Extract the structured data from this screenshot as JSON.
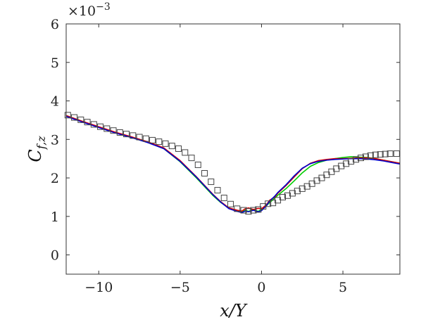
{
  "chart_data": {
    "type": "line",
    "title": "",
    "xlabel": "x/Y",
    "ylabel": {
      "main": "C",
      "sub": "f,z"
    },
    "y_exponent": {
      "base": "×10",
      "power": "−3"
    },
    "xlim": [
      -12,
      8.5
    ],
    "ylim": [
      -0.5,
      6
    ],
    "x_ticks": [
      -10,
      -5,
      0,
      5
    ],
    "y_ticks": [
      0,
      1,
      2,
      3,
      4,
      5,
      6
    ],
    "grid": false,
    "legend": "none",
    "series": [
      {
        "color": "#00cc00",
        "style": "line",
        "x": [
          -12,
          -11,
          -10,
          -9,
          -8,
          -7,
          -6,
          -5,
          -4,
          -3,
          -2.5,
          -2,
          -1.5,
          -1.2,
          -1,
          -0.8,
          -0.5,
          -0.2,
          0,
          0.3,
          0.5,
          0.8,
          1,
          1.5,
          2,
          2.5,
          3,
          3.5,
          4,
          4.5,
          5,
          5.5,
          6,
          6.5,
          7,
          7.5,
          8,
          8.5
        ],
        "y": [
          3.62,
          3.47,
          3.32,
          3.18,
          3.06,
          2.93,
          2.76,
          2.42,
          2.0,
          1.55,
          1.36,
          1.22,
          1.15,
          1.12,
          1.16,
          1.13,
          1.18,
          1.13,
          1.18,
          1.28,
          1.36,
          1.47,
          1.55,
          1.72,
          1.92,
          2.13,
          2.3,
          2.4,
          2.46,
          2.5,
          2.53,
          2.55,
          2.54,
          2.53,
          2.5,
          2.46,
          2.42,
          2.38
        ]
      },
      {
        "color": "#dd0000",
        "style": "line",
        "x": [
          -12,
          -11,
          -10,
          -9,
          -8,
          -7,
          -6,
          -5,
          -4,
          -3,
          -2.5,
          -2,
          -1.5,
          -1.2,
          -1,
          -0.8,
          -0.5,
          -0.2,
          0,
          0.3,
          0.5,
          0.8,
          1,
          1.5,
          2,
          2.5,
          3,
          3.5,
          4,
          4.5,
          5,
          5.5,
          6,
          6.5,
          7,
          7.5,
          8,
          8.5
        ],
        "y": [
          3.62,
          3.47,
          3.33,
          3.19,
          3.07,
          2.94,
          2.78,
          2.45,
          2.03,
          1.58,
          1.38,
          1.22,
          1.16,
          1.14,
          1.2,
          1.22,
          1.18,
          1.21,
          1.2,
          1.3,
          1.42,
          1.5,
          1.6,
          1.8,
          2.02,
          2.24,
          2.38,
          2.45,
          2.48,
          2.5,
          2.5,
          2.51,
          2.52,
          2.52,
          2.5,
          2.46,
          2.42,
          2.38
        ]
      },
      {
        "color": "#0000cc",
        "style": "line",
        "x": [
          -12,
          -11,
          -10,
          -9,
          -8,
          -7,
          -6,
          -5,
          -4,
          -3,
          -2.5,
          -2,
          -1.5,
          -1.2,
          -1,
          -0.8,
          -0.5,
          -0.2,
          0,
          0.3,
          0.5,
          0.8,
          1,
          1.5,
          2,
          2.5,
          3,
          3.5,
          4,
          4.5,
          5,
          5.5,
          6,
          6.5,
          7,
          7.5,
          8,
          8.5
        ],
        "y": [
          3.6,
          3.45,
          3.31,
          3.17,
          3.05,
          2.92,
          2.76,
          2.43,
          2.02,
          1.57,
          1.37,
          1.2,
          1.13,
          1.1,
          1.14,
          1.12,
          1.16,
          1.12,
          1.15,
          1.28,
          1.4,
          1.52,
          1.62,
          1.82,
          2.05,
          2.25,
          2.37,
          2.43,
          2.46,
          2.48,
          2.49,
          2.5,
          2.5,
          2.49,
          2.47,
          2.44,
          2.4,
          2.36
        ]
      },
      {
        "color": "#444444",
        "style": "square-markers",
        "x": [
          -11.9,
          -11.5,
          -11.1,
          -10.7,
          -10.3,
          -9.9,
          -9.5,
          -9.1,
          -8.7,
          -8.3,
          -7.9,
          -7.5,
          -7.1,
          -6.7,
          -6.3,
          -5.9,
          -5.5,
          -5.1,
          -4.7,
          -4.3,
          -3.9,
          -3.5,
          -3.1,
          -2.7,
          -2.3,
          -1.9,
          -1.5,
          -1.1,
          -0.8,
          -0.5,
          -0.2,
          0.1,
          0.4,
          0.7,
          1.0,
          1.3,
          1.6,
          1.9,
          2.2,
          2.5,
          2.8,
          3.1,
          3.4,
          3.7,
          4.0,
          4.3,
          4.6,
          4.9,
          5.2,
          5.5,
          5.8,
          6.1,
          6.4,
          6.7,
          7.0,
          7.3,
          7.6,
          7.9,
          8.3
        ],
        "y": [
          3.63,
          3.57,
          3.51,
          3.45,
          3.39,
          3.33,
          3.28,
          3.23,
          3.18,
          3.14,
          3.1,
          3.06,
          3.02,
          2.98,
          2.94,
          2.89,
          2.83,
          2.76,
          2.66,
          2.52,
          2.34,
          2.12,
          1.9,
          1.68,
          1.48,
          1.32,
          1.2,
          1.16,
          1.13,
          1.16,
          1.18,
          1.26,
          1.33,
          1.35,
          1.42,
          1.5,
          1.54,
          1.6,
          1.66,
          1.72,
          1.78,
          1.85,
          1.93,
          2.0,
          2.08,
          2.16,
          2.24,
          2.31,
          2.37,
          2.43,
          2.48,
          2.52,
          2.55,
          2.58,
          2.6,
          2.61,
          2.62,
          2.63,
          2.63
        ]
      }
    ]
  }
}
